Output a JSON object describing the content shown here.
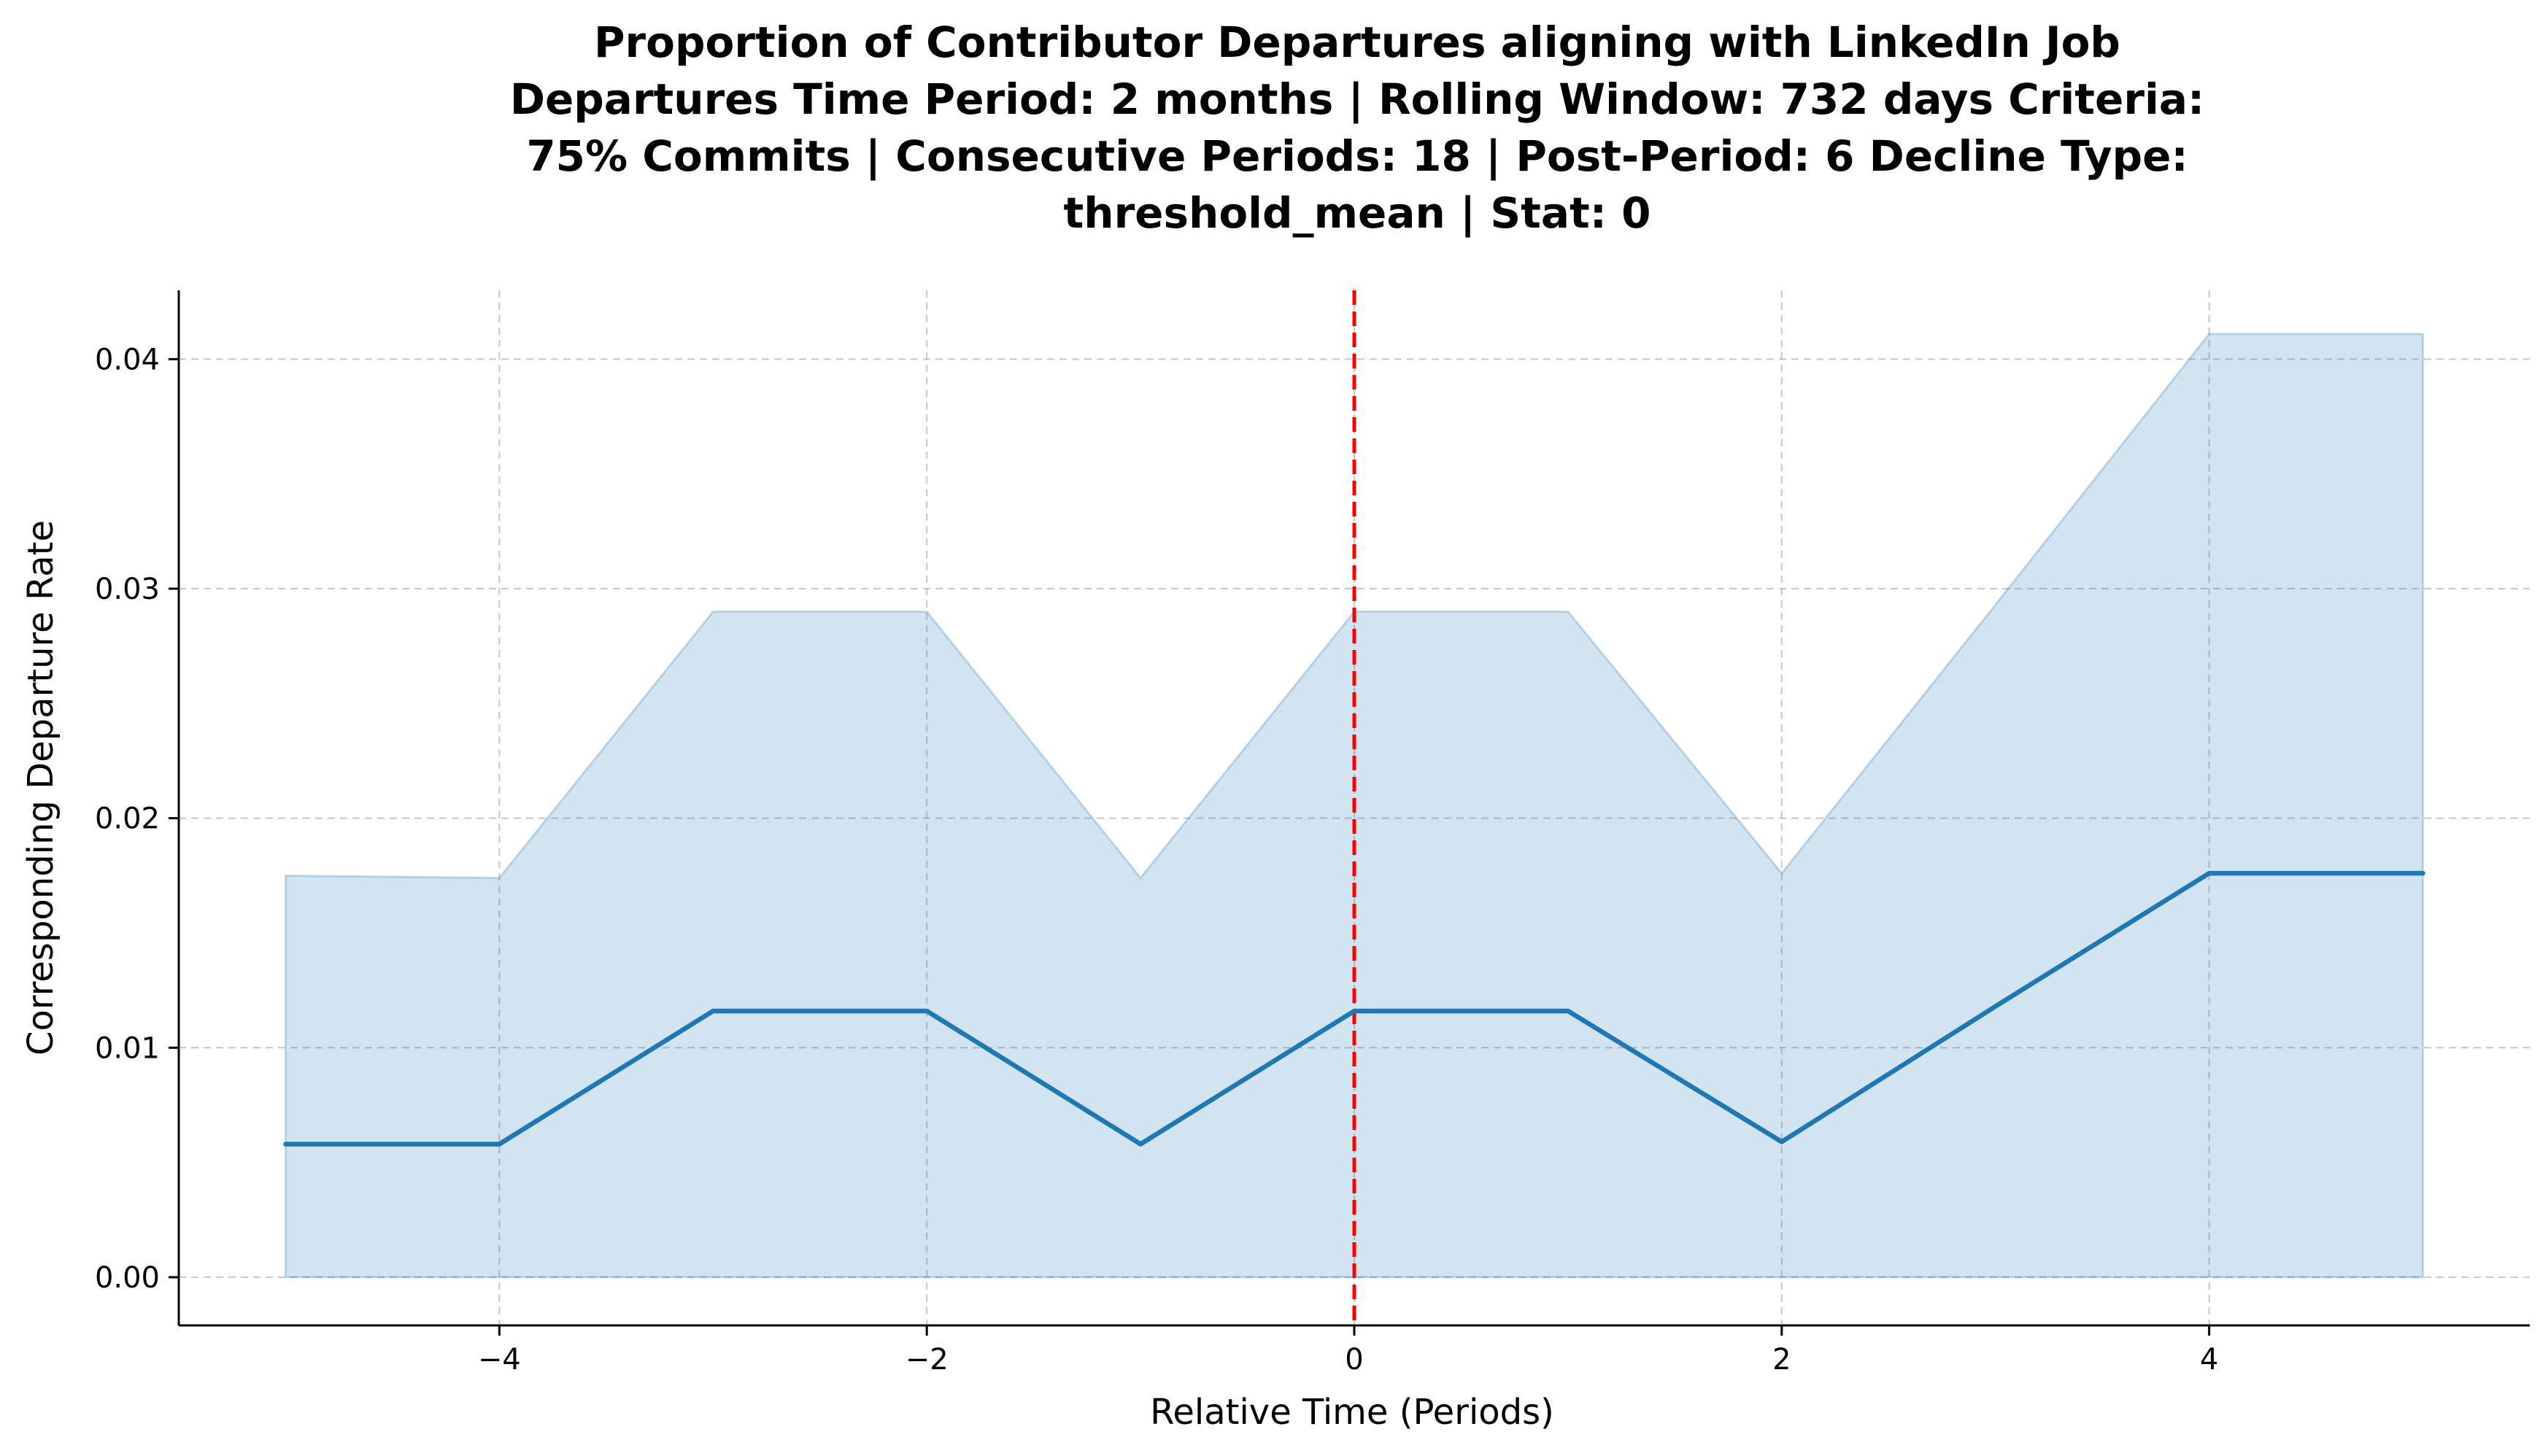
{
  "chart_data": {
    "type": "line",
    "title_lines": [
      "Proportion of Contributor Departures aligning with LinkedIn Job",
      "Departures Time Period: 2 months | Rolling Window: 732 days  Criteria:",
      "75% Commits | Consecutive Periods: 18 | Post-Period: 6 Decline Type:",
      "threshold_mean | Stat: 0"
    ],
    "xlabel": "Relative Time (Periods)",
    "ylabel": "Corresponding Departure Rate",
    "xlim": [
      -5.5,
      5.5
    ],
    "ylim": [
      -0.0021,
      0.043
    ],
    "x_ticks": [
      -4,
      -2,
      0,
      2,
      4
    ],
    "x_tick_labels": [
      "−4",
      "−2",
      "0",
      "2",
      "4"
    ],
    "y_ticks": [
      0.0,
      0.01,
      0.02,
      0.03,
      0.04
    ],
    "y_tick_labels": [
      "0.00",
      "0.01",
      "0.02",
      "0.03",
      "0.04"
    ],
    "grid": true,
    "x": [
      -5,
      -4,
      -3,
      -2,
      -1,
      0,
      1,
      2,
      3,
      4,
      5
    ],
    "series": [
      {
        "values": [
          0.0058,
          0.0058,
          0.0116,
          0.0116,
          0.0058,
          0.0116,
          0.0116,
          0.0059,
          0.0118,
          0.0176,
          0.0176
        ],
        "color": "#1f77b4"
      }
    ],
    "band": {
      "lower": [
        0,
        0,
        0,
        0,
        0,
        0,
        0,
        0,
        0,
        0,
        0
      ],
      "upper": [
        0.0175,
        0.0174,
        0.029,
        0.029,
        0.0174,
        0.029,
        0.029,
        0.0176,
        0.0293,
        0.0411,
        0.0411
      ],
      "color": "#1f77b4"
    },
    "reference_line": {
      "x": 0,
      "color": "#ff0000",
      "style": "dashed"
    }
  }
}
